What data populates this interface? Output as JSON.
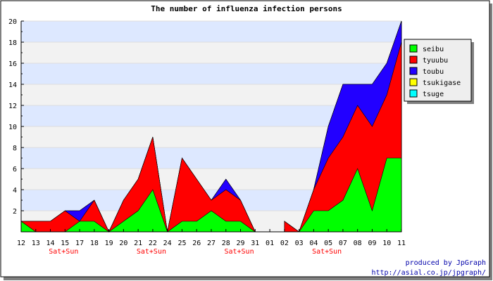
{
  "chart_data": {
    "type": "area",
    "stacked": true,
    "title": "The number of influenza infection persons",
    "xlabel": "",
    "ylabel": "",
    "ylim": [
      0,
      20
    ],
    "ytick_step": 2,
    "grid": true,
    "legend_position": "right",
    "categories": [
      "12",
      "13",
      "14",
      "15",
      "17",
      "18",
      "19",
      "20",
      "21",
      "22",
      "24",
      "25",
      "26",
      "27",
      "28",
      "29",
      "31",
      "01",
      "02",
      "03",
      "04",
      "05",
      "07",
      "08",
      "09",
      "10",
      "11"
    ],
    "week_markers": [
      {
        "index": 3,
        "label": "Sat+Sun"
      },
      {
        "index": 9,
        "label": "Sat+Sun"
      },
      {
        "index": 15,
        "label": "Sat+Sun"
      },
      {
        "index": 21,
        "label": "Sat+Sun"
      }
    ],
    "series": [
      {
        "name": "seibu",
        "color": "#00ff00",
        "values": [
          1,
          0,
          0,
          0,
          1,
          1,
          0,
          1,
          2,
          4,
          0,
          1,
          1,
          2,
          1,
          1,
          0,
          null,
          0,
          0,
          2,
          2,
          3,
          6,
          2,
          7,
          7
        ]
      },
      {
        "name": "tyuubu",
        "color": "#ff0000",
        "values": [
          0,
          1,
          1,
          2,
          0,
          2,
          0,
          2,
          3,
          5,
          0,
          6,
          4,
          1,
          3,
          2,
          0,
          null,
          1,
          0,
          2,
          5,
          6,
          6,
          8,
          6,
          11
        ]
      },
      {
        "name": "toubu",
        "color": "#2200ff",
        "values": [
          0,
          0,
          0,
          0,
          1,
          0,
          0,
          0,
          0,
          0,
          0,
          0,
          0,
          0,
          1,
          0,
          0,
          null,
          0,
          0,
          0,
          3,
          5,
          2,
          4,
          3,
          2
        ]
      },
      {
        "name": "tsukigase",
        "color": "#ffff00",
        "values": [
          0,
          0,
          0,
          0,
          0,
          0,
          0,
          0,
          0,
          0,
          0,
          0,
          0,
          0,
          0,
          0,
          0,
          null,
          0,
          0,
          0,
          0,
          0,
          0,
          0,
          0,
          0
        ]
      },
      {
        "name": "tsuge",
        "color": "#00ffff",
        "values": [
          0,
          0,
          0,
          0,
          0,
          0,
          0,
          0,
          0,
          0,
          0,
          0,
          0,
          0,
          0,
          0,
          0,
          null,
          0,
          0,
          0,
          0,
          0,
          0,
          0,
          0,
          0
        ]
      }
    ]
  },
  "credit": {
    "line1": "produced by JpGraph",
    "line2": "http://asial.co.jp/jpgraph/"
  },
  "colors": {
    "band_blue": "#dde8ff",
    "band_gray": "#f2f2f2",
    "week_label": "#ff0000",
    "credit": "#0000aa"
  }
}
